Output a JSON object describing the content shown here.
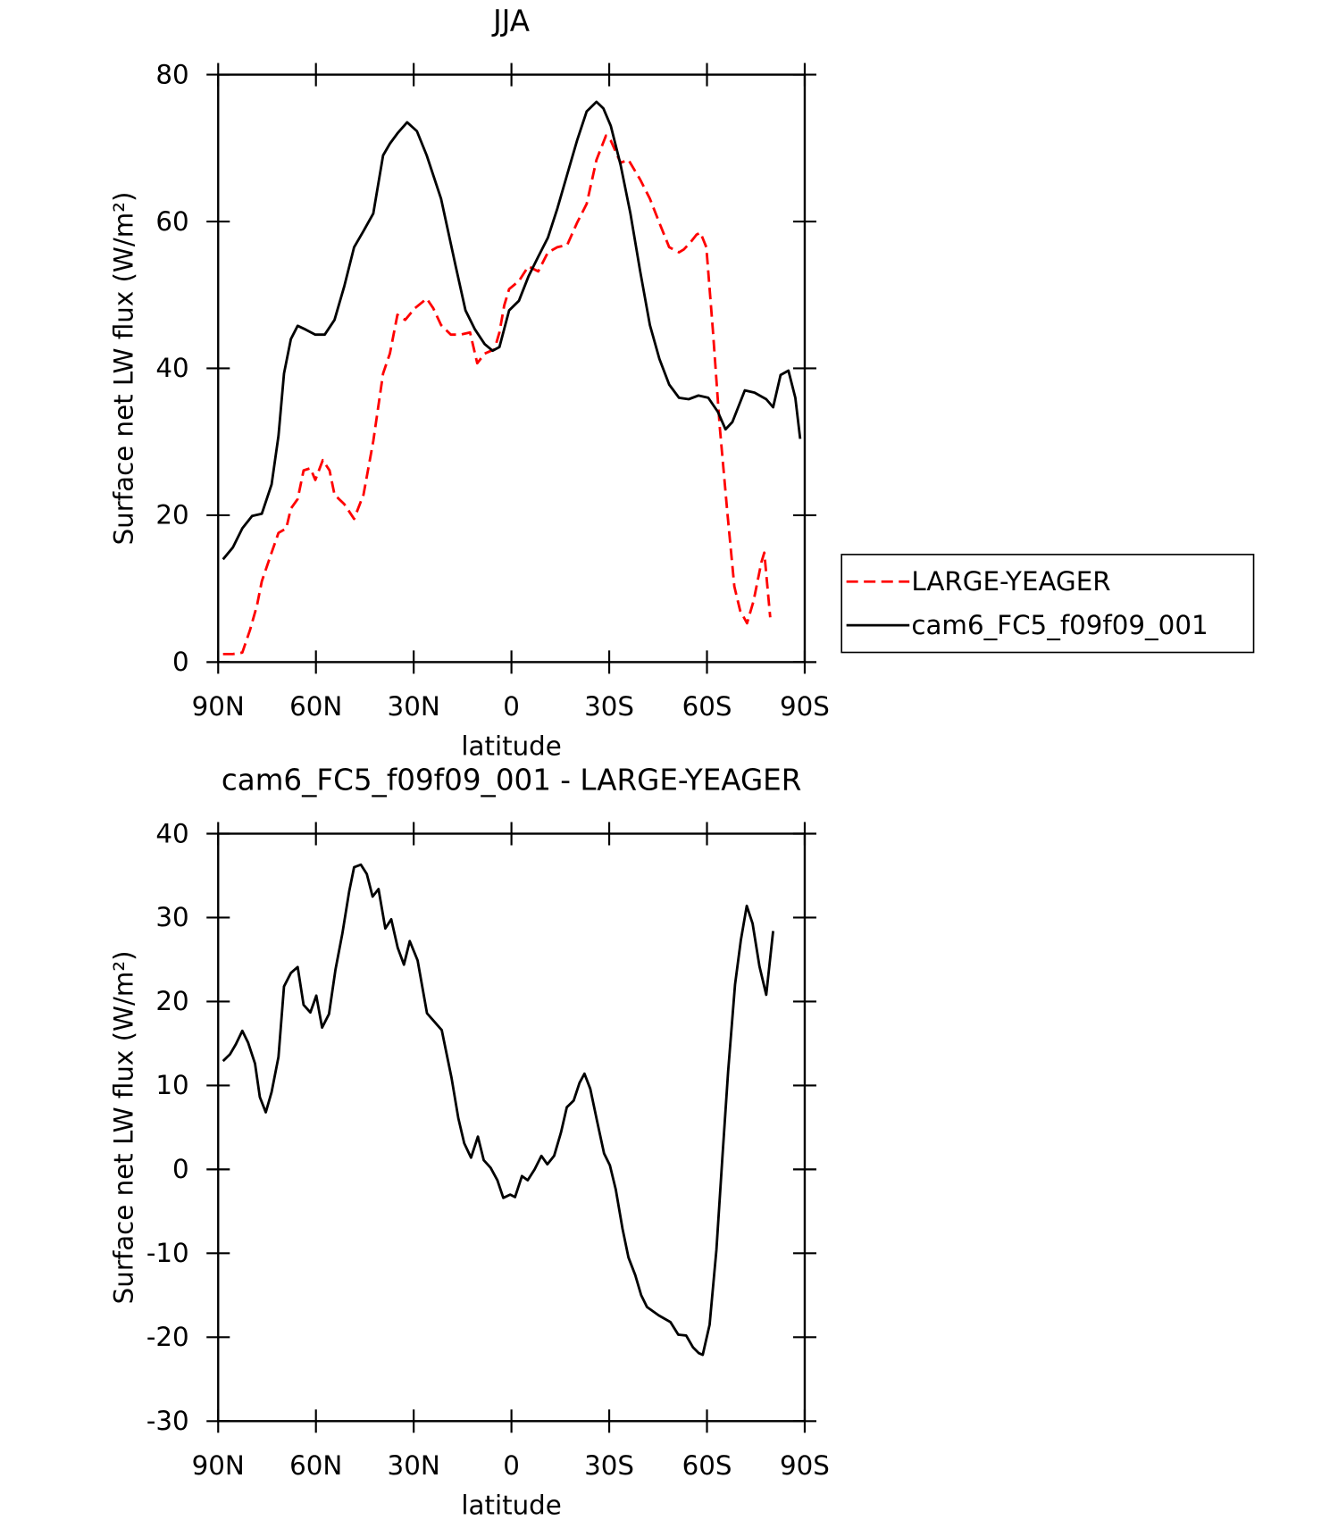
{
  "chart_data": [
    {
      "type": "line",
      "title": "JJA",
      "x_label": "latitude",
      "y_label": "Surface net LW flux (W/m²)",
      "xlim": [
        90,
        -90
      ],
      "xticks": [
        {
          "value": 90,
          "label": "90N"
        },
        {
          "value": 60,
          "label": "60N"
        },
        {
          "value": 30,
          "label": "30N"
        },
        0,
        {
          "value": -30,
          "label": "30S"
        },
        {
          "value": -60,
          "label": "60S"
        },
        {
          "value": -90,
          "label": "90S"
        }
      ],
      "ylim": [
        0,
        80
      ],
      "yticks": [
        0,
        20,
        40,
        60,
        80
      ],
      "legend": "right",
      "series": [
        {
          "name": "LARGE-YEAGER",
          "color": "#ff0000",
          "linestyle": "dashed",
          "x": [
            88.5,
            85.5,
            82.6,
            80.2,
            78.1,
            76.6,
            73.6,
            71.5,
            69.1,
            67.7,
            65.6,
            63.8,
            61.7,
            60.2,
            57.9,
            55.8,
            54.3,
            51.3,
            48.3,
            45.4,
            42.4,
            39.4,
            37.3,
            35.0,
            32.6,
            29.6,
            26.0,
            24.0,
            21.6,
            18.6,
            15.6,
            12.7,
            10.5,
            8.2,
            5.2,
            3.7,
            2.2,
            0.7,
            -2.3,
            -5.2,
            -8.2,
            -11.2,
            -14.1,
            -17.1,
            -20.1,
            -23.1,
            -26.1,
            -29.0,
            -30.5,
            -33.5,
            -35.9,
            -39.5,
            -42.5,
            -45.4,
            -48.4,
            -51.4,
            -52.9,
            -55.0,
            -56.8,
            -58.0,
            -59.8,
            -61.8,
            -63.9,
            -66.3,
            -68.4,
            -70.2,
            -72.3,
            -74.3,
            -76.7,
            -77.6,
            -79.4
          ],
          "values": [
            1.1,
            1.1,
            1.3,
            4.4,
            7.7,
            11.0,
            14.9,
            17.6,
            18.2,
            20.9,
            22.2,
            26.1,
            26.4,
            24.8,
            27.5,
            26.1,
            22.8,
            21.5,
            19.5,
            22.8,
            30.1,
            39.3,
            42.0,
            47.3,
            46.6,
            48.2,
            49.5,
            48.2,
            45.9,
            44.6,
            44.6,
            44.9,
            40.7,
            42.0,
            42.6,
            44.9,
            48.6,
            50.8,
            51.9,
            53.9,
            53.2,
            55.8,
            56.5,
            56.8,
            59.8,
            62.4,
            68.4,
            71.7,
            71.0,
            68.0,
            68.4,
            65.7,
            63.1,
            59.8,
            56.5,
            55.8,
            56.2,
            57.2,
            58.2,
            58.5,
            56.5,
            45.3,
            32.1,
            20.2,
            10.3,
            7.0,
            5.3,
            8.3,
            13.6,
            14.9,
            6.1
          ]
        },
        {
          "name": "cam6_FC5_f09f09_001",
          "color": "#000000",
          "linestyle": "solid",
          "x": [
            88.5,
            85.5,
            82.6,
            79.6,
            76.6,
            73.6,
            71.5,
            69.8,
            67.7,
            65.6,
            63.2,
            60.2,
            57.3,
            54.3,
            51.3,
            48.3,
            45.4,
            42.4,
            39.4,
            37.3,
            35.0,
            32.0,
            29.0,
            26.0,
            21.6,
            17.1,
            14.1,
            11.2,
            8.2,
            5.8,
            3.7,
            0.7,
            -2.3,
            -5.2,
            -8.2,
            -11.2,
            -14.1,
            -17.1,
            -20.1,
            -23.1,
            -26.1,
            -28.2,
            -30.5,
            -33.5,
            -36.5,
            -39.5,
            -42.5,
            -45.4,
            -48.4,
            -51.4,
            -54.4,
            -57.4,
            -60.4,
            -63.3,
            -65.7,
            -67.8,
            -71.6,
            -74.6,
            -78.2,
            -80.3,
            -82.6,
            -85.0,
            -87.1,
            -88.6
          ],
          "values": [
            14.0,
            15.6,
            18.2,
            19.9,
            20.2,
            24.2,
            30.8,
            39.3,
            44.0,
            45.8,
            45.3,
            44.6,
            44.6,
            46.6,
            51.2,
            56.5,
            58.7,
            61.1,
            69.0,
            70.6,
            72.0,
            73.5,
            72.3,
            69.0,
            63.1,
            53.9,
            47.9,
            45.3,
            43.3,
            42.4,
            42.9,
            47.9,
            49.2,
            52.5,
            55.2,
            57.8,
            61.8,
            66.4,
            71.0,
            75.0,
            76.3,
            75.4,
            73.0,
            67.7,
            61.1,
            53.2,
            45.9,
            41.3,
            37.8,
            36.0,
            35.8,
            36.3,
            36.0,
            34.1,
            31.7,
            32.7,
            37.0,
            36.7,
            35.8,
            34.7,
            39.1,
            39.7,
            36.0,
            30.4
          ]
        }
      ]
    },
    {
      "type": "line",
      "title": "cam6_FC5_f09f09_001 - LARGE-YEAGER",
      "x_label": "latitude",
      "y_label": "Surface net LW flux (W/m²)",
      "xlim": [
        90,
        -90
      ],
      "xticks": [
        {
          "value": 90,
          "label": "90N"
        },
        {
          "value": 60,
          "label": "60N"
        },
        {
          "value": 30,
          "label": "30N"
        },
        0,
        {
          "value": -30,
          "label": "30S"
        },
        {
          "value": -60,
          "label": "60S"
        },
        {
          "value": -90,
          "label": "90S"
        }
      ],
      "ylim": [
        -30,
        40
      ],
      "yticks": [
        -30,
        -20,
        -10,
        0,
        10,
        20,
        30,
        40
      ],
      "series": [
        {
          "color": "#000000",
          "linestyle": "solid",
          "x": [
            88.5,
            86.4,
            84.6,
            82.6,
            80.8,
            78.7,
            77.2,
            75.4,
            73.6,
            71.5,
            69.8,
            67.7,
            65.6,
            63.8,
            61.7,
            59.9,
            58.1,
            56.0,
            54.0,
            51.9,
            49.8,
            48.3,
            46.2,
            44.4,
            42.6,
            40.8,
            38.7,
            36.9,
            34.9,
            33.0,
            31.2,
            28.8,
            25.9,
            21.4,
            18.4,
            16.3,
            14.5,
            12.4,
            10.3,
            8.5,
            6.4,
            4.3,
            2.5,
            0.4,
            -1.1,
            -3.2,
            -5.0,
            -7.1,
            -9.2,
            -11.0,
            -13.1,
            -15.2,
            -17.0,
            -19.1,
            -20.9,
            -22.4,
            -24.2,
            -26.3,
            -28.4,
            -30.2,
            -32.0,
            -34.1,
            -35.9,
            -38.0,
            -39.8,
            -41.6,
            -45.2,
            -48.8,
            -51.2,
            -53.6,
            -55.7,
            -57.5,
            -58.7,
            -60.8,
            -62.9,
            -64.7,
            -66.5,
            -68.6,
            -70.4,
            -72.2,
            -74.0,
            -76.1,
            -78.2,
            -80.3
          ],
          "values": [
            12.9,
            13.7,
            14.9,
            16.5,
            15.1,
            12.6,
            8.6,
            6.8,
            9.2,
            13.4,
            21.8,
            23.4,
            24.1,
            19.6,
            18.7,
            20.7,
            16.9,
            18.5,
            23.8,
            28.1,
            33.1,
            36.0,
            36.3,
            35.2,
            32.5,
            33.4,
            28.7,
            29.8,
            26.4,
            24.4,
            27.2,
            24.9,
            18.6,
            16.6,
            10.9,
            6.1,
            3.1,
            1.4,
            3.9,
            1.1,
            0.2,
            -1.3,
            -3.4,
            -3.0,
            -3.3,
            -0.8,
            -1.3,
            0.0,
            1.6,
            0.6,
            1.6,
            4.4,
            7.4,
            8.2,
            10.3,
            11.4,
            9.6,
            5.7,
            1.9,
            0.5,
            -2.4,
            -7.1,
            -10.5,
            -12.6,
            -15.0,
            -16.4,
            -17.4,
            -18.2,
            -19.7,
            -19.8,
            -21.2,
            -21.9,
            -22.1,
            -18.5,
            -9.6,
            1.3,
            11.7,
            22.0,
            27.3,
            31.4,
            29.3,
            24.2,
            20.8,
            28.4
          ]
        }
      ]
    }
  ]
}
